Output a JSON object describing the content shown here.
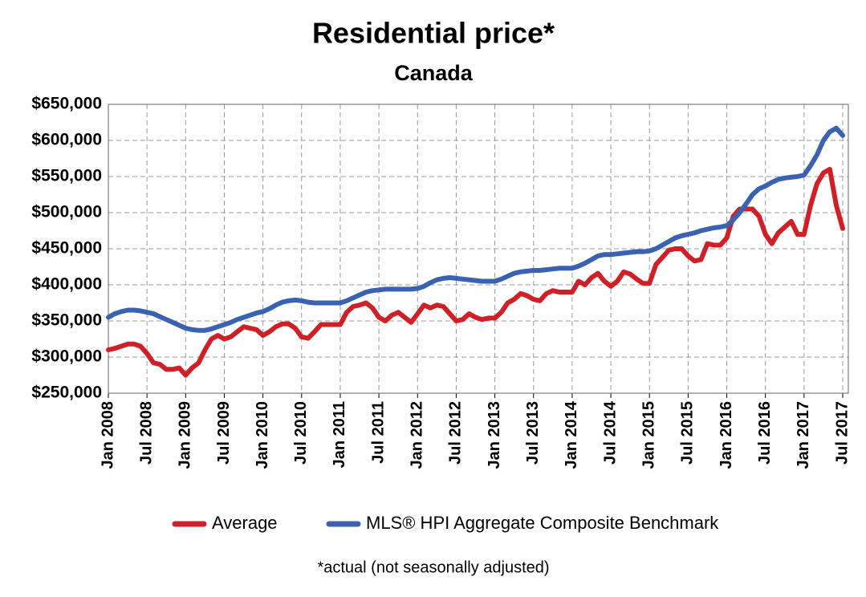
{
  "chart_data": {
    "type": "line",
    "title": "Residential price*",
    "subtitle": "Canada",
    "note": "*actual (not seasonally adjusted)",
    "categories": [
      "Jan 2008",
      null,
      null,
      null,
      null,
      null,
      "Jul 2008",
      null,
      null,
      null,
      null,
      null,
      "Jan 2009",
      null,
      null,
      null,
      null,
      null,
      "Jul 2009",
      null,
      null,
      null,
      null,
      null,
      "Jan 2010",
      null,
      null,
      null,
      null,
      null,
      "Jul 2010",
      null,
      null,
      null,
      null,
      null,
      "Jan 2011",
      null,
      null,
      null,
      null,
      null,
      "Jul 2011",
      null,
      null,
      null,
      null,
      null,
      "Jan 2012",
      null,
      null,
      null,
      null,
      null,
      "Jul 2012",
      null,
      null,
      null,
      null,
      null,
      "Jan 2013",
      null,
      null,
      null,
      null,
      null,
      "Jul 2013",
      null,
      null,
      null,
      null,
      null,
      "Jan 2014",
      null,
      null,
      null,
      null,
      null,
      "Jul 2014",
      null,
      null,
      null,
      null,
      null,
      "Jan 2015",
      null,
      null,
      null,
      null,
      null,
      "Jul 2015",
      null,
      null,
      null,
      null,
      null,
      "Jan 2016",
      null,
      null,
      null,
      null,
      null,
      "Jul 2016",
      null,
      null,
      null,
      null,
      null,
      "Jan 2017",
      null,
      null,
      null,
      null,
      null,
      "Jul 2017"
    ],
    "series": [
      {
        "name": "Average",
        "color": "#d02027",
        "values": [
          310000,
          312000,
          315000,
          318000,
          318000,
          315000,
          305000,
          292000,
          290000,
          283000,
          283000,
          285000,
          275000,
          285000,
          292000,
          310000,
          325000,
          330000,
          325000,
          328000,
          335000,
          342000,
          340000,
          338000,
          330000,
          335000,
          342000,
          346000,
          346000,
          340000,
          328000,
          326000,
          335000,
          345000,
          345000,
          345000,
          345000,
          362000,
          370000,
          372000,
          375000,
          368000,
          355000,
          350000,
          358000,
          362000,
          355000,
          348000,
          360000,
          372000,
          368000,
          372000,
          370000,
          360000,
          350000,
          352000,
          360000,
          355000,
          352000,
          354000,
          354000,
          362000,
          375000,
          380000,
          388000,
          385000,
          380000,
          378000,
          388000,
          392000,
          390000,
          390000,
          390000,
          405000,
          400000,
          410000,
          416000,
          405000,
          398000,
          405000,
          418000,
          415000,
          408000,
          402000,
          402000,
          428000,
          438000,
          448000,
          450000,
          450000,
          440000,
          433000,
          435000,
          457000,
          455000,
          455000,
          465000,
          495000,
          505000,
          505000,
          505000,
          495000,
          470000,
          457000,
          472000,
          480000,
          488000,
          470000,
          470000,
          510000,
          540000,
          555000,
          560000,
          510000,
          478000
        ]
      },
      {
        "name": "MLS® HPI Aggregate Composite Benchmark",
        "color": "#3a62b0",
        "values": [
          355000,
          360000,
          363000,
          365000,
          365000,
          364000,
          362000,
          360000,
          356000,
          352000,
          348000,
          344000,
          340000,
          338000,
          337000,
          337000,
          339000,
          342000,
          345000,
          348000,
          352000,
          355000,
          358000,
          361000,
          363000,
          367000,
          372000,
          376000,
          378000,
          379000,
          378000,
          376000,
          375000,
          375000,
          375000,
          375000,
          375000,
          378000,
          382000,
          386000,
          390000,
          392000,
          393000,
          394000,
          394000,
          394000,
          394000,
          394000,
          395000,
          398000,
          403000,
          407000,
          409000,
          410000,
          409000,
          408000,
          407000,
          406000,
          405000,
          405000,
          405000,
          408000,
          412000,
          416000,
          418000,
          419000,
          420000,
          420000,
          421000,
          422000,
          423000,
          423000,
          423000,
          426000,
          430000,
          435000,
          440000,
          442000,
          442000,
          443000,
          444000,
          445000,
          446000,
          446000,
          447000,
          450000,
          455000,
          460000,
          465000,
          468000,
          470000,
          472000,
          475000,
          477000,
          479000,
          480000,
          482000,
          490000,
          500000,
          512000,
          525000,
          533000,
          537000,
          542000,
          546000,
          548000,
          549000,
          550000,
          552000,
          565000,
          580000,
          600000,
          612000,
          617000,
          607000
        ]
      }
    ],
    "ylim": [
      250000,
      650000
    ],
    "yticks": [
      {
        "value": 250000,
        "label": "$250,000"
      },
      {
        "value": 300000,
        "label": "$300,000"
      },
      {
        "value": 350000,
        "label": "$350,000"
      },
      {
        "value": 400000,
        "label": "$400,000"
      },
      {
        "value": 450000,
        "label": "$450,000"
      },
      {
        "value": 500000,
        "label": "$500,000"
      },
      {
        "value": 550000,
        "label": "$550,000"
      },
      {
        "value": 600000,
        "label": "$600,000"
      },
      {
        "value": 650000,
        "label": "$650,000"
      }
    ],
    "grid": true,
    "legend": "bottom"
  }
}
